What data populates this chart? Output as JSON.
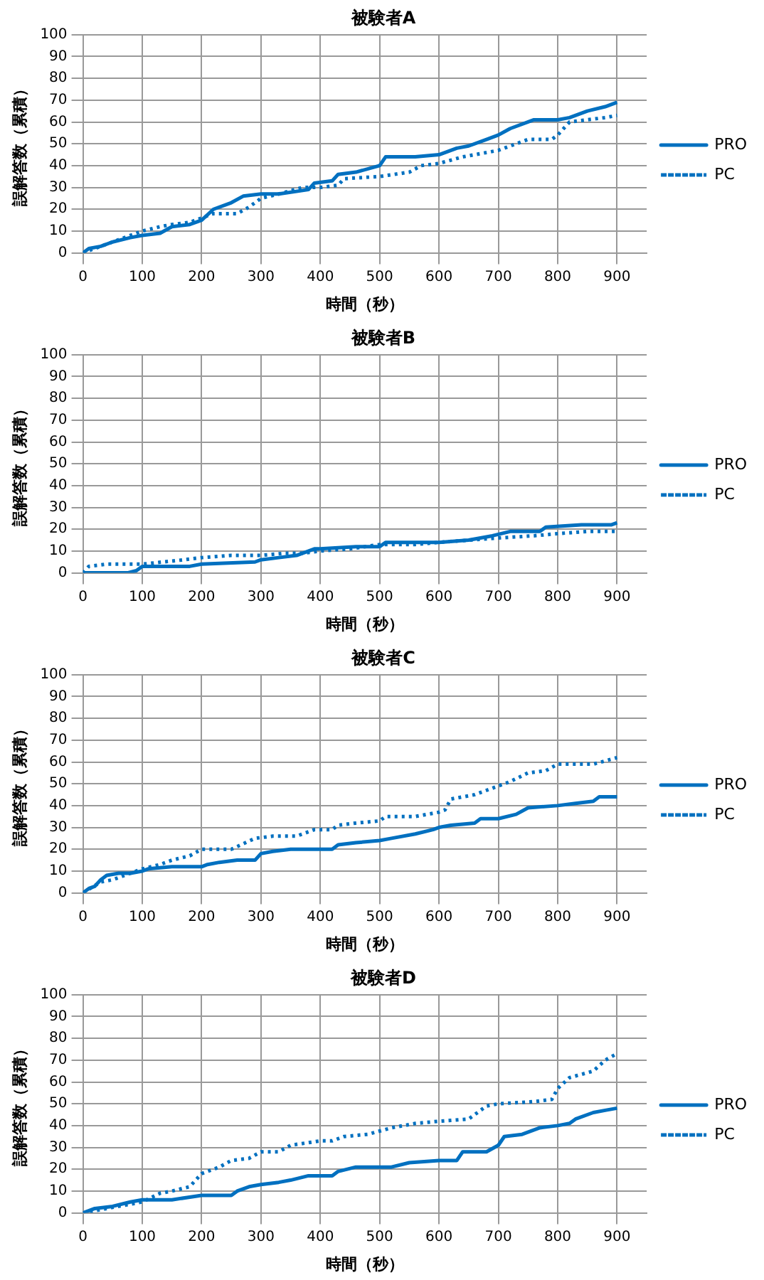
{
  "chart_data": [
    {
      "type": "line",
      "title": "被験者A",
      "xlabel": "時間（秒）",
      "ylabel": "誤解答数（累積）",
      "xlim": [
        0,
        950
      ],
      "xticks": [
        0,
        100,
        200,
        300,
        400,
        500,
        600,
        700,
        800,
        900
      ],
      "ylim": [
        0,
        100
      ],
      "yticks": [
        0,
        10,
        20,
        30,
        40,
        50,
        60,
        70,
        80,
        90,
        100
      ],
      "grid": true,
      "legend": "right",
      "marker": "none",
      "series": [
        {
          "name": "PRO",
          "color": "#0070c0",
          "line_style": "solid",
          "x": [
            0,
            10,
            30,
            50,
            80,
            100,
            130,
            150,
            180,
            200,
            220,
            250,
            270,
            300,
            330,
            380,
            390,
            420,
            430,
            460,
            500,
            510,
            560,
            600,
            630,
            650,
            680,
            700,
            720,
            760,
            800,
            820,
            850,
            880,
            900
          ],
          "values": [
            0,
            2,
            3,
            5,
            7,
            8,
            9,
            12,
            13,
            15,
            20,
            23,
            26,
            27,
            27,
            29,
            32,
            33,
            36,
            37,
            40,
            44,
            44,
            45,
            48,
            49,
            52,
            54,
            57,
            61,
            61,
            62,
            65,
            67,
            69
          ]
        },
        {
          "name": "PC",
          "color": "#0070c0",
          "line_style": "dotted",
          "x": [
            0,
            20,
            50,
            100,
            130,
            150,
            180,
            200,
            220,
            260,
            280,
            300,
            330,
            370,
            400,
            430,
            440,
            500,
            550,
            570,
            600,
            640,
            700,
            720,
            750,
            790,
            800,
            820,
            850,
            880,
            900
          ],
          "values": [
            0,
            2,
            5,
            10,
            12,
            13,
            14,
            16,
            18,
            18,
            21,
            25,
            27,
            30,
            30,
            31,
            34,
            35,
            37,
            40,
            41,
            44,
            47,
            49,
            52,
            52,
            54,
            60,
            61,
            62,
            63
          ]
        }
      ]
    },
    {
      "type": "line",
      "title": "被験者B",
      "xlabel": "時間（秒）",
      "ylabel": "誤解答数（累積）",
      "xlim": [
        0,
        950
      ],
      "xticks": [
        0,
        100,
        200,
        300,
        400,
        500,
        600,
        700,
        800,
        900
      ],
      "ylim": [
        0,
        100
      ],
      "yticks": [
        0,
        10,
        20,
        30,
        40,
        50,
        60,
        70,
        80,
        90,
        100
      ],
      "grid": true,
      "legend": "right",
      "marker": "none",
      "series": [
        {
          "name": "PRO",
          "color": "#0070c0",
          "line_style": "solid",
          "x": [
            0,
            75,
            90,
            100,
            180,
            200,
            290,
            300,
            330,
            360,
            390,
            400,
            460,
            500,
            510,
            560,
            600,
            650,
            690,
            720,
            770,
            780,
            840,
            890,
            900
          ],
          "values": [
            0,
            0,
            1,
            3,
            3,
            4,
            5,
            6,
            7,
            8,
            11,
            11,
            12,
            12,
            14,
            14,
            14,
            15,
            17,
            19,
            19,
            21,
            22,
            22,
            23
          ]
        },
        {
          "name": "PC",
          "color": "#0070c0",
          "line_style": "dotted",
          "x": [
            0,
            10,
            40,
            100,
            170,
            200,
            250,
            300,
            340,
            370,
            400,
            450,
            500,
            560,
            600,
            650,
            700,
            760,
            800,
            850,
            900
          ],
          "values": [
            0,
            3,
            4,
            4,
            6,
            7,
            8,
            8,
            9,
            9,
            10,
            11,
            13,
            13,
            14,
            15,
            16,
            17,
            18,
            19,
            19
          ]
        }
      ]
    },
    {
      "type": "line",
      "title": "被験者C",
      "xlabel": "時間（秒）",
      "ylabel": "誤解答数（累積）",
      "xlim": [
        0,
        950
      ],
      "xticks": [
        0,
        100,
        200,
        300,
        400,
        500,
        600,
        700,
        800,
        900
      ],
      "ylim": [
        0,
        100
      ],
      "yticks": [
        0,
        10,
        20,
        30,
        40,
        50,
        60,
        70,
        80,
        90,
        100
      ],
      "grid": true,
      "legend": "right",
      "marker": "none",
      "series": [
        {
          "name": "PRO",
          "color": "#0070c0",
          "line_style": "solid",
          "x": [
            0,
            10,
            20,
            30,
            40,
            60,
            80,
            100,
            110,
            150,
            200,
            210,
            230,
            260,
            290,
            300,
            320,
            350,
            380,
            420,
            430,
            460,
            500,
            520,
            560,
            590,
            600,
            620,
            660,
            670,
            700,
            730,
            750,
            800,
            830,
            860,
            870,
            900
          ],
          "values": [
            0,
            2,
            3,
            6,
            8,
            9,
            9,
            10,
            11,
            12,
            12,
            13,
            14,
            15,
            15,
            18,
            19,
            20,
            20,
            20,
            22,
            23,
            24,
            25,
            27,
            29,
            30,
            31,
            32,
            34,
            34,
            36,
            39,
            40,
            41,
            42,
            44,
            44
          ]
        },
        {
          "name": "PC",
          "color": "#0070c0",
          "line_style": "dotted",
          "x": [
            0,
            30,
            50,
            80,
            100,
            130,
            150,
            180,
            200,
            250,
            290,
            320,
            360,
            390,
            420,
            430,
            460,
            500,
            510,
            560,
            600,
            610,
            620,
            660,
            690,
            720,
            750,
            780,
            800,
            860,
            900
          ],
          "values": [
            0,
            5,
            6,
            9,
            11,
            13,
            15,
            17,
            20,
            20,
            25,
            26,
            26,
            29,
            29,
            31,
            32,
            33,
            35,
            35,
            37,
            38,
            43,
            45,
            48,
            51,
            55,
            56,
            59,
            59,
            62
          ]
        }
      ]
    },
    {
      "type": "line",
      "title": "被験者D",
      "xlabel": "時間（秒）",
      "ylabel": "誤解答数（累積）",
      "xlim": [
        0,
        950
      ],
      "xticks": [
        0,
        100,
        200,
        300,
        400,
        500,
        600,
        700,
        800,
        900
      ],
      "ylim": [
        0,
        100
      ],
      "yticks": [
        0,
        10,
        20,
        30,
        40,
        50,
        60,
        70,
        80,
        90,
        100
      ],
      "grid": true,
      "legend": "right",
      "marker": "none",
      "series": [
        {
          "name": "PRO",
          "color": "#0070c0",
          "line_style": "solid",
          "x": [
            0,
            20,
            50,
            80,
            100,
            150,
            200,
            250,
            260,
            280,
            300,
            330,
            350,
            380,
            420,
            430,
            460,
            520,
            550,
            600,
            630,
            640,
            680,
            700,
            710,
            740,
            770,
            800,
            820,
            830,
            860,
            880,
            900
          ],
          "values": [
            0,
            2,
            3,
            5,
            6,
            6,
            8,
            8,
            10,
            12,
            13,
            14,
            15,
            17,
            17,
            19,
            21,
            21,
            23,
            24,
            24,
            28,
            28,
            31,
            35,
            36,
            39,
            40,
            41,
            43,
            46,
            47,
            48
          ]
        },
        {
          "name": "PC",
          "color": "#0070c0",
          "line_style": "dotted",
          "x": [
            0,
            100,
            130,
            150,
            180,
            200,
            230,
            250,
            280,
            300,
            330,
            350,
            400,
            420,
            440,
            480,
            520,
            560,
            600,
            650,
            680,
            700,
            760,
            790,
            800,
            820,
            860,
            880,
            900
          ],
          "values": [
            0,
            5,
            9,
            10,
            12,
            18,
            21,
            24,
            25,
            28,
            28,
            31,
            33,
            33,
            35,
            36,
            39,
            41,
            42,
            43,
            49,
            50,
            51,
            52,
            57,
            62,
            65,
            70,
            73
          ]
        }
      ]
    }
  ]
}
